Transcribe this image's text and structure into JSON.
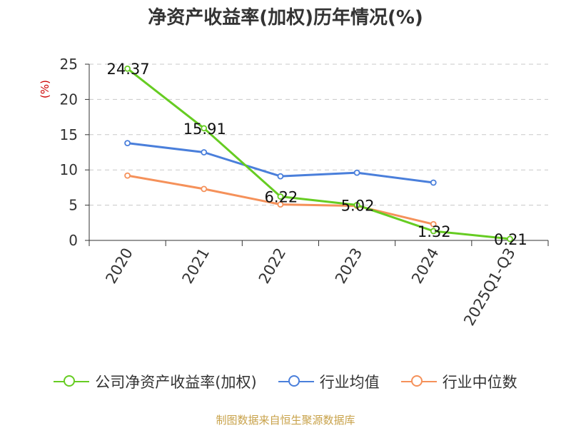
{
  "chart_data": {
    "type": "line",
    "title": "净资产收益率(加权)历年情况(%)",
    "ylabel": "(%)",
    "xlabel": "",
    "ylim": [
      0,
      25
    ],
    "yticks": [
      0,
      5,
      10,
      15,
      20,
      25
    ],
    "grid": true,
    "legend_position": "bottom",
    "categories": [
      "2020",
      "2021",
      "2022",
      "2023",
      "2024",
      "2025Q1-Q3"
    ],
    "series": [
      {
        "name": "公司净资产收益率(加权)",
        "color": "#66cc22",
        "values": [
          24.37,
          15.91,
          6.22,
          5.02,
          1.32,
          0.21
        ],
        "labels": [
          "24.37",
          "15.91",
          "6.22",
          "5.02",
          "1.32",
          "0.21"
        ]
      },
      {
        "name": "行业均值",
        "color": "#4a7fdb",
        "values": [
          13.8,
          12.5,
          9.1,
          9.6,
          8.2,
          null
        ]
      },
      {
        "name": "行业中位数",
        "color": "#f5915a",
        "values": [
          9.2,
          7.3,
          5.1,
          4.9,
          2.3,
          null
        ]
      }
    ]
  },
  "source_text": "制图数据来自恒生聚源数据库"
}
